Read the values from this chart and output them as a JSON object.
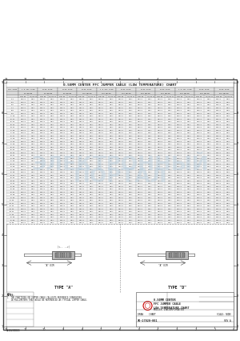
{
  "title": "0.50MM CENTER FFC JUMPER CABLE (LOW TEMPERATURE) CHART",
  "background": "#ffffff",
  "border_color": "#555555",
  "watermark_color": "#b8cfe0",
  "col_headers_line1": [
    "CKT SIZE",
    "1.0 SPC HCHD",
    "FLIP HCHD",
    "FLIP HCHD",
    "FLIP HCHD",
    "1.0 SPC HCHD",
    "FLIP HCHD",
    "FLIP HCHD",
    "FLIP HCHD",
    "1.0 SPC HCHD",
    "FLIP HCHD",
    "FLIP HCHD"
  ],
  "col_headers_line2": [
    "",
    "30 MM RM",
    "30 MM RM",
    "50 MM RM",
    "100 MM RM",
    "100 MM RM",
    "150 MM RM",
    "200 MM RM",
    "250 MM RM",
    "250 MM RM",
    "300 MM RM",
    "350 MM RM"
  ],
  "sub_headers_a": [
    "",
    "PART NO.",
    "PART NO.",
    "PART NO.",
    "PART NO.",
    "PART NO.",
    "PART NO.",
    "PART NO.",
    "PART NO.",
    "PART NO.",
    "PART NO.",
    "PART NO."
  ],
  "sub_headers_b": [
    "",
    "TS/LLD SS",
    "TS/LLD SS",
    "TS/LLD SS",
    "TS/LLD SS",
    "TS/LLD SS",
    "TS/LLD SS",
    "TS/LLD SS",
    "TS/LLD SS",
    "TS/LLD SS",
    "TS/LLD SS",
    "TS/LLD SS"
  ],
  "row_sizes": [
    4,
    5,
    6,
    7,
    8,
    9,
    10,
    11,
    12,
    13,
    14,
    15,
    16,
    17,
    18,
    19,
    20,
    21,
    22,
    23,
    24,
    25,
    26,
    27,
    28,
    29,
    30,
    31,
    32,
    33,
    34,
    35,
    36,
    37,
    38,
    39,
    40,
    41,
    42,
    43,
    44,
    45,
    50,
    55,
    60
  ],
  "type_a_label": "TYPE \"A\"",
  "type_d_label": "TYPE \"D\"",
  "notes_line1": "NOTES:",
  "notes_line2": "1  THE FRACTIONS ON JUMPER CABLE CALLOUTS REFERENCE DIMENSIONS",
  "notes_line3": "   IN MILLIMETERS THAT WOULD BE REFERENCED AS TYPICAL JUMPER CABLE.",
  "title_block_title": "0.50MM CENTER\nFFC JUMPER CABLE\nLOW TEMPERATURE CHART",
  "company": "MOLEX INCORPORATED",
  "drawing_no": "SD-27020-001",
  "doc_type": "CHART",
  "revision": "A",
  "scale": "NONE",
  "tc": "#222222",
  "lc": "#777777",
  "bc": "#444444",
  "hdr_bg": "#e0e0e0",
  "alt_bg": "#eeeeee",
  "white": "#ffffff"
}
